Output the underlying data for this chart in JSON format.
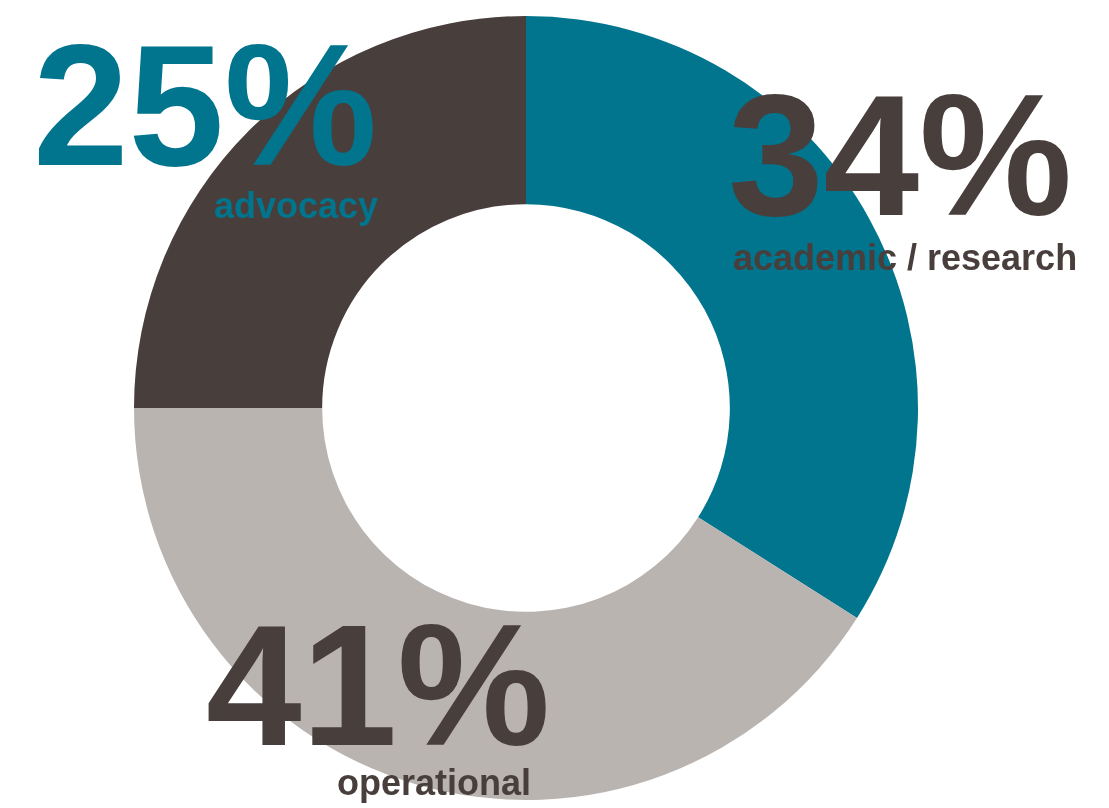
{
  "chart_data": {
    "type": "donut",
    "categories": [
      "academic / research",
      "operational",
      "advocacy"
    ],
    "values": [
      34,
      41,
      25
    ],
    "value_labels": [
      "34%",
      "41%",
      "25%"
    ],
    "colors": [
      "#00758d",
      "#bab4b1",
      "#483e3c"
    ],
    "legend": false
  }
}
